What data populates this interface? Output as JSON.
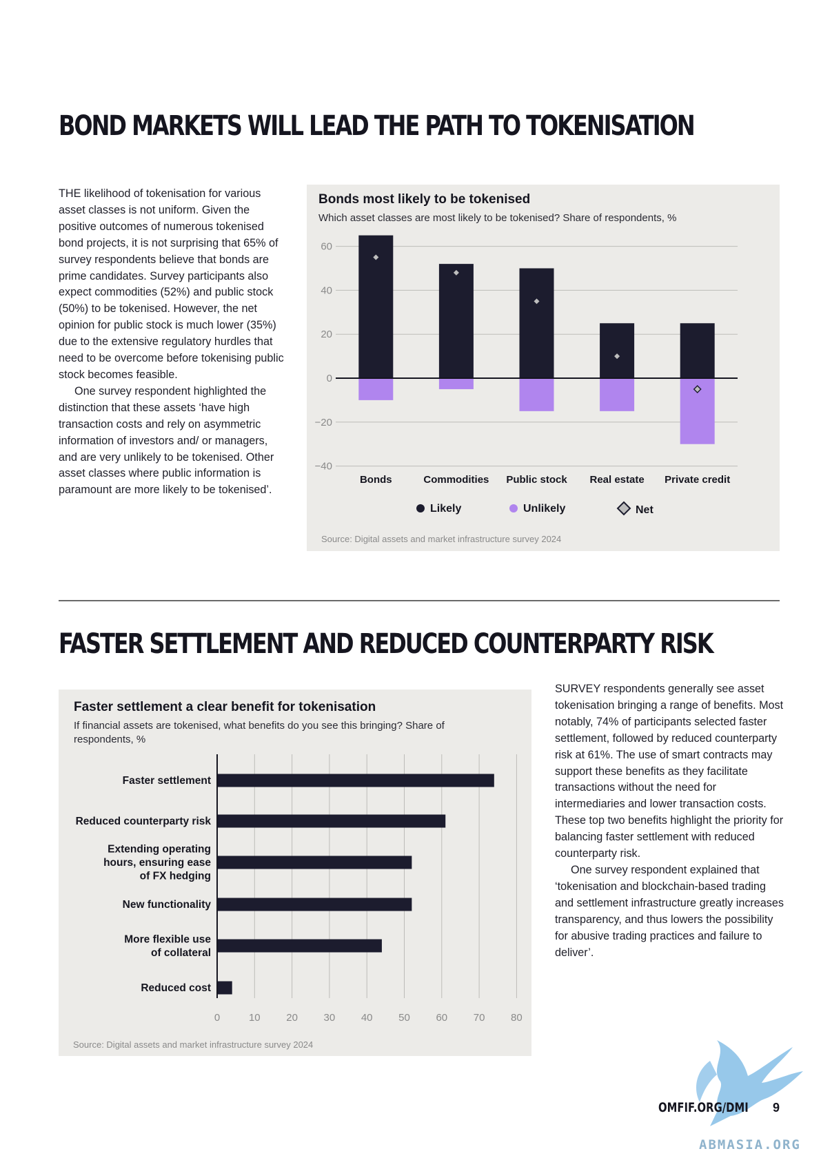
{
  "section1": {
    "heading": "BOND MARKETS WILL LEAD THE PATH TO TOKENISATION",
    "paragraphs": [
      "THE likelihood of tokenisation for various asset classes is not uniform. Given the positive outcomes of numerous tokenised bond projects, it is not surprising that 65% of survey respondents believe that bonds are prime candidates. Survey participants also expect commodities (52%) and public stock (50%) to be tokenised. However, the net opinion for public stock is much lower (35%) due to the extensive regulatory hurdles that need to be overcome before tokenising public stock becomes feasible.",
      "One survey respondent highlighted the distinction that these assets ‘have high transaction costs and rely on asymmetric information of investors and/ or managers, and are very unlikely to be tokenised. Other asset classes where public information is paramount are more likely to be tokenised’."
    ]
  },
  "section2": {
    "heading": "FASTER SETTLEMENT AND REDUCED COUNTERPARTY RISK",
    "paragraphs": [
      "SURVEY respondents generally see asset tokenisation bringing a range of benefits. Most notably, 74% of participants selected faster settlement, followed by reduced counterparty risk at 61%. The use of smart contracts may support these benefits as they facilitate transactions without the need for intermediaries and lower transaction costs. These top two benefits highlight the priority for balancing faster settlement with reduced counterparty risk.",
      "One survey respondent explained that ‘tokenisation and blockchain-based trading and settlement infrastructure greatly increases transparency, and thus lowers the possibility for abusive trading practices and failure to deliver’."
    ]
  },
  "chart1": {
    "title": "Bonds most likely to be tokenised",
    "subtitle": "Which asset classes are most likely to be tokenised? Share of respondents, %",
    "source": "Source: Digital assets and market infrastructure survey 2024"
  },
  "chart2": {
    "title": "Faster settlement a clear benefit for tokenisation",
    "subtitle": "If financial assets are tokenised, what benefits do you see this bringing? Share of respondents, %",
    "source": "Source: Digital assets and market infrastructure survey 2024"
  },
  "chart_data": [
    {
      "type": "bar",
      "title": "Bonds most likely to be tokenised",
      "subtitle": "Which asset classes are most likely to be tokenised? Share of respondents, %",
      "categories": [
        "Bonds",
        "Commodities",
        "Public stock",
        "Real estate",
        "Private credit"
      ],
      "series": [
        {
          "name": "Likely",
          "values": [
            65,
            52,
            50,
            25,
            25
          ],
          "color": "#1c1c2e"
        },
        {
          "name": "Unlikely",
          "values": [
            -10,
            -5,
            -15,
            -15,
            -30
          ],
          "color": "#b085ee"
        },
        {
          "name": "Net",
          "values": [
            55,
            48,
            35,
            10,
            -5
          ],
          "color": "#bdbdbd",
          "marker": "diamond"
        }
      ],
      "yticks": [
        60,
        40,
        20,
        0,
        -20,
        -40
      ],
      "yticklabels": [
        "60",
        "40",
        "20",
        "0",
        "−20",
        "−40"
      ],
      "ylim": [
        -40,
        65
      ],
      "grid": true,
      "legend": "bottom",
      "source": "Source: Digital assets and market infrastructure survey 2024"
    },
    {
      "type": "bar",
      "orientation": "horizontal",
      "title": "Faster settlement a clear benefit for tokenisation",
      "subtitle": "If financial assets are tokenised, what benefits do you see this bringing? Share of respondents, %",
      "categories": [
        [
          "Faster settlement"
        ],
        [
          "Reduced counterparty risk"
        ],
        [
          "Extending operating",
          "hours, ensuring ease",
          "of FX hedging"
        ],
        [
          "New functionality"
        ],
        [
          "More flexible use",
          "of collateral"
        ],
        [
          "Reduced cost"
        ]
      ],
      "values": [
        74,
        61,
        52,
        52,
        44,
        4
      ],
      "color": "#1c1c2e",
      "xticks": [
        0,
        10,
        20,
        30,
        40,
        50,
        60,
        70,
        80
      ],
      "xlim": [
        0,
        80
      ],
      "grid": true,
      "source": "Source: Digital assets and market infrastructure survey 2024"
    }
  ],
  "footer": {
    "url": "OMFIF.ORG/DMI",
    "page": "9",
    "watermark": "ABMASIA.ORG"
  }
}
